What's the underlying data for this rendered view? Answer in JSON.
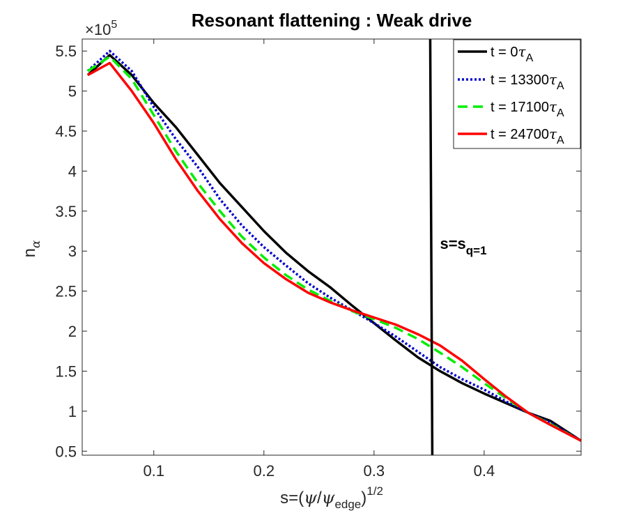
{
  "chart_data": {
    "type": "line",
    "title": "Resonant flattening : Weak drive",
    "xlabel": {
      "prefix": "s=(",
      "psi": "ψ",
      "slash": "/",
      "psi2": "ψ",
      "sub": "edge",
      "close": ")",
      "sup": "1/2"
    },
    "ylabel": {
      "base": "n",
      "sub": "α"
    },
    "y_multiplier": {
      "prefix": "×10",
      "exp": "5"
    },
    "xlim": [
      0.035,
      0.488
    ],
    "ylim": [
      0.45,
      5.65
    ],
    "xticks": [
      0.1,
      0.2,
      0.3,
      0.4
    ],
    "xtick_labels": [
      "0.1",
      "0.2",
      "0.3",
      "0.4"
    ],
    "yticks": [
      0.5,
      1,
      1.5,
      2,
      2.5,
      3,
      3.5,
      4,
      4.5,
      5,
      5.5
    ],
    "ytick_labels": [
      "0.5",
      "1",
      "1.5",
      "2",
      "2.5",
      "3",
      "3.5",
      "4",
      "4.5",
      "5",
      "5.5"
    ],
    "grid": false,
    "legend_position": "top-right",
    "vline": {
      "x": 0.351,
      "label_main": "s=s",
      "label_sub": "q=1",
      "label_y": 3.1
    },
    "series": [
      {
        "name": "t = 0τA",
        "label_prefix": "t = 0",
        "label_tau": "τ",
        "label_sub": "A",
        "color": "#000000",
        "dash": "solid",
        "x": [
          0.04,
          0.06,
          0.08,
          0.1,
          0.12,
          0.14,
          0.16,
          0.18,
          0.2,
          0.22,
          0.24,
          0.26,
          0.28,
          0.3,
          0.32,
          0.34,
          0.36,
          0.38,
          0.4,
          0.42,
          0.44,
          0.46,
          0.488
        ],
        "y": [
          5.2,
          5.45,
          5.2,
          4.85,
          4.55,
          4.2,
          3.85,
          3.55,
          3.25,
          2.98,
          2.75,
          2.55,
          2.32,
          2.1,
          1.88,
          1.67,
          1.5,
          1.35,
          1.22,
          1.1,
          0.98,
          0.88,
          0.63
        ]
      },
      {
        "name": "t = 13300τA",
        "label_prefix": "t = 13300",
        "label_tau": "τ",
        "label_sub": "A",
        "color": "#0000cc",
        "dash": "dotted",
        "x": [
          0.04,
          0.06,
          0.08,
          0.1,
          0.12,
          0.14,
          0.16,
          0.18,
          0.2,
          0.22,
          0.24,
          0.26,
          0.28,
          0.3,
          0.32,
          0.34,
          0.36,
          0.38,
          0.4,
          0.42,
          0.44,
          0.46,
          0.488
        ],
        "y": [
          5.25,
          5.5,
          5.25,
          4.8,
          4.4,
          4.05,
          3.65,
          3.32,
          3.05,
          2.82,
          2.6,
          2.42,
          2.26,
          2.1,
          1.93,
          1.74,
          1.55,
          1.4,
          1.27,
          1.12,
          0.98,
          0.86,
          0.63
        ]
      },
      {
        "name": "t = 17100τA",
        "label_prefix": "t = 17100",
        "label_tau": "τ",
        "label_sub": "A",
        "color": "#00ee00",
        "dash": "dashed",
        "x": [
          0.04,
          0.06,
          0.08,
          0.1,
          0.12,
          0.14,
          0.16,
          0.18,
          0.2,
          0.22,
          0.24,
          0.26,
          0.28,
          0.3,
          0.32,
          0.34,
          0.36,
          0.38,
          0.4,
          0.42,
          0.44,
          0.46,
          0.488
        ],
        "y": [
          5.25,
          5.43,
          5.15,
          4.7,
          4.25,
          3.85,
          3.5,
          3.18,
          2.92,
          2.7,
          2.52,
          2.38,
          2.25,
          2.15,
          2.04,
          1.9,
          1.73,
          1.55,
          1.35,
          1.16,
          0.98,
          0.84,
          0.63
        ]
      },
      {
        "name": "t = 24700τA",
        "label_prefix": "t = 24700",
        "label_tau": "τ",
        "label_sub": "A",
        "color": "#ff0000",
        "dash": "solid",
        "x": [
          0.04,
          0.06,
          0.08,
          0.1,
          0.12,
          0.14,
          0.16,
          0.18,
          0.2,
          0.22,
          0.24,
          0.26,
          0.28,
          0.3,
          0.32,
          0.34,
          0.36,
          0.38,
          0.4,
          0.42,
          0.44,
          0.46,
          0.488
        ],
        "y": [
          5.2,
          5.35,
          5.0,
          4.6,
          4.15,
          3.75,
          3.4,
          3.1,
          2.85,
          2.65,
          2.48,
          2.36,
          2.26,
          2.17,
          2.08,
          1.96,
          1.82,
          1.63,
          1.4,
          1.18,
          0.98,
          0.83,
          0.63
        ]
      }
    ]
  }
}
